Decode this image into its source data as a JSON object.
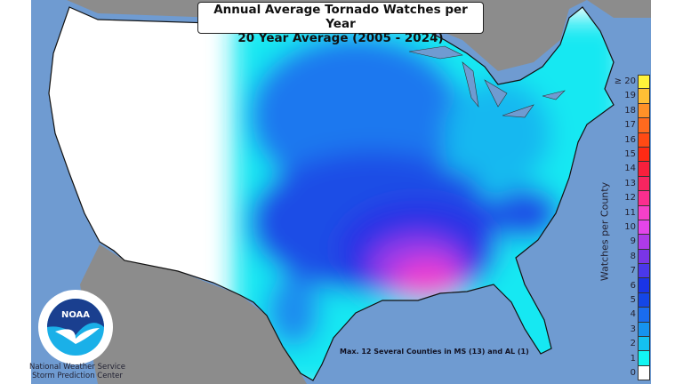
{
  "title": {
    "line1": "Annual Average Tornado Watches per Year",
    "line2": "20 Year Average (2005 - 2024)"
  },
  "legend": {
    "label": "Watches per County",
    "ticks": [
      "≥ 20",
      "19",
      "18",
      "17",
      "16",
      "15",
      "14",
      "13",
      "12",
      "11",
      "10",
      "9",
      "8",
      "7",
      "6",
      "5",
      "4",
      "3",
      "2",
      "1",
      "0"
    ],
    "colors": [
      "#fff23a",
      "#ffbf35",
      "#ff9128",
      "#ff6a1e",
      "#ff4a14",
      "#ff2a14",
      "#f8203c",
      "#f72560",
      "#fa2e8e",
      "#f540c8",
      "#e445ea",
      "#ad3ae8",
      "#7a35e6",
      "#4a38ea",
      "#1a34e6",
      "#1446e6",
      "#1a6cef",
      "#1693ef",
      "#14c1f0",
      "#12f5f2",
      "#ffffff"
    ]
  },
  "colors": {
    "water": "#6f9bd1",
    "foreign_land": "#8c8c8c",
    "land_zero": "#ffffff"
  },
  "annotation": "Max. 12 Several Counties in MS (13) and AL (1)",
  "logo": {
    "text": "NOAA",
    "ring_text": "NATIONAL OCEANIC AND ATMOSPHERIC ADMINISTRATION · U.S. DEPARTMENT OF COMMERCE"
  },
  "credit": {
    "line1": "National Weather Service",
    "line2": "Storm Prediction Center"
  }
}
